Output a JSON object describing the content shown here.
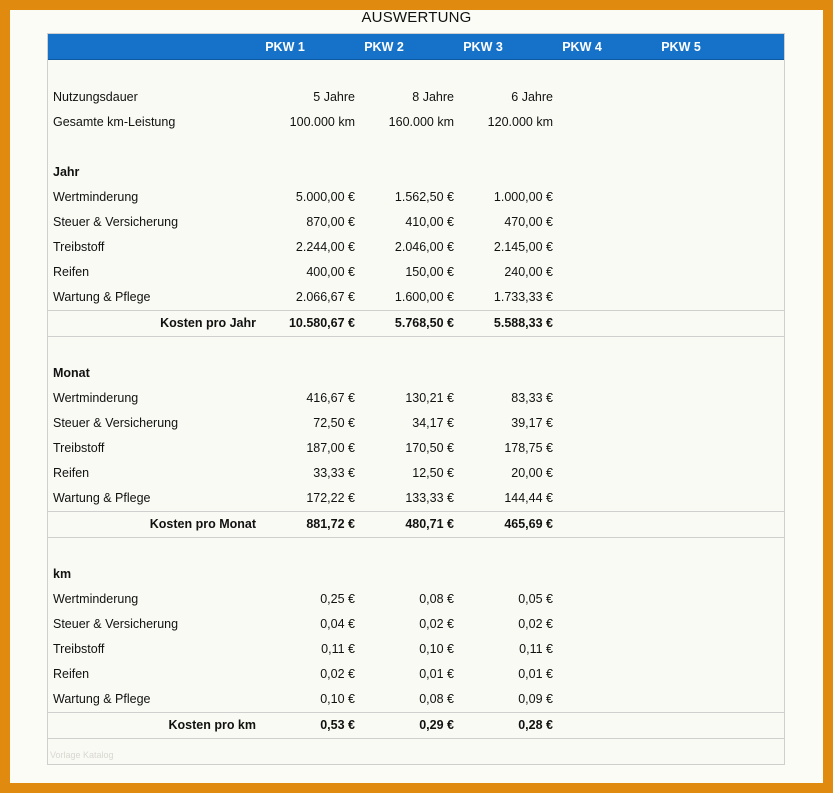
{
  "title": "AUSWERTUNG",
  "columns": [
    "PKW 1",
    "PKW 2",
    "PKW 3",
    "PKW 4",
    "PKW 5"
  ],
  "info_rows": [
    {
      "label": "Nutzungsdauer",
      "values": [
        "5 Jahre",
        "8 Jahre",
        "6 Jahre"
      ]
    },
    {
      "label": "Gesamte km-Leistung",
      "values": [
        "100.000 km",
        "160.000 km",
        "120.000 km"
      ]
    }
  ],
  "sections": [
    {
      "heading": "Jahr",
      "rows": [
        {
          "label": "Wertminderung",
          "values": [
            "5.000,00 €",
            "1.562,50 €",
            "1.000,00 €"
          ]
        },
        {
          "label": "Steuer & Versicherung",
          "values": [
            "870,00 €",
            "410,00 €",
            "470,00 €"
          ]
        },
        {
          "label": "Treibstoff",
          "values": [
            "2.244,00 €",
            "2.046,00 €",
            "2.145,00 €"
          ]
        },
        {
          "label": "Reifen",
          "values": [
            "400,00 €",
            "150,00 €",
            "240,00 €"
          ]
        },
        {
          "label": "Wartung & Pflege",
          "values": [
            "2.066,67 €",
            "1.600,00 €",
            "1.733,33 €"
          ]
        }
      ],
      "total": {
        "label": "Kosten pro Jahr",
        "values": [
          "10.580,67 €",
          "5.768,50 €",
          "5.588,33 €"
        ]
      }
    },
    {
      "heading": "Monat",
      "rows": [
        {
          "label": "Wertminderung",
          "values": [
            "416,67 €",
            "130,21 €",
            "83,33 €"
          ]
        },
        {
          "label": "Steuer & Versicherung",
          "values": [
            "72,50 €",
            "34,17 €",
            "39,17 €"
          ]
        },
        {
          "label": "Treibstoff",
          "values": [
            "187,00 €",
            "170,50 €",
            "178,75 €"
          ]
        },
        {
          "label": "Reifen",
          "values": [
            "33,33 €",
            "12,50 €",
            "20,00 €"
          ]
        },
        {
          "label": "Wartung & Pflege",
          "values": [
            "172,22 €",
            "133,33 €",
            "144,44 €"
          ]
        }
      ],
      "total": {
        "label": "Kosten pro Monat",
        "values": [
          "881,72 €",
          "480,71 €",
          "465,69 €"
        ]
      }
    },
    {
      "heading": "km",
      "rows": [
        {
          "label": "Wertminderung",
          "values": [
            "0,25 €",
            "0,08 €",
            "0,05 €"
          ]
        },
        {
          "label": "Steuer & Versicherung",
          "values": [
            "0,04 €",
            "0,02 €",
            "0,02 €"
          ]
        },
        {
          "label": "Treibstoff",
          "values": [
            "0,11 €",
            "0,10 €",
            "0,11 €"
          ]
        },
        {
          "label": "Reifen",
          "values": [
            "0,02 €",
            "0,01 €",
            "0,01 €"
          ]
        },
        {
          "label": "Wartung & Pflege",
          "values": [
            "0,10 €",
            "0,08 €",
            "0,09 €"
          ]
        }
      ],
      "total": {
        "label": "Kosten pro km",
        "values": [
          "0,53 €",
          "0,29 €",
          "0,28 €"
        ]
      }
    }
  ],
  "watermark": "Vorlage Katalog"
}
